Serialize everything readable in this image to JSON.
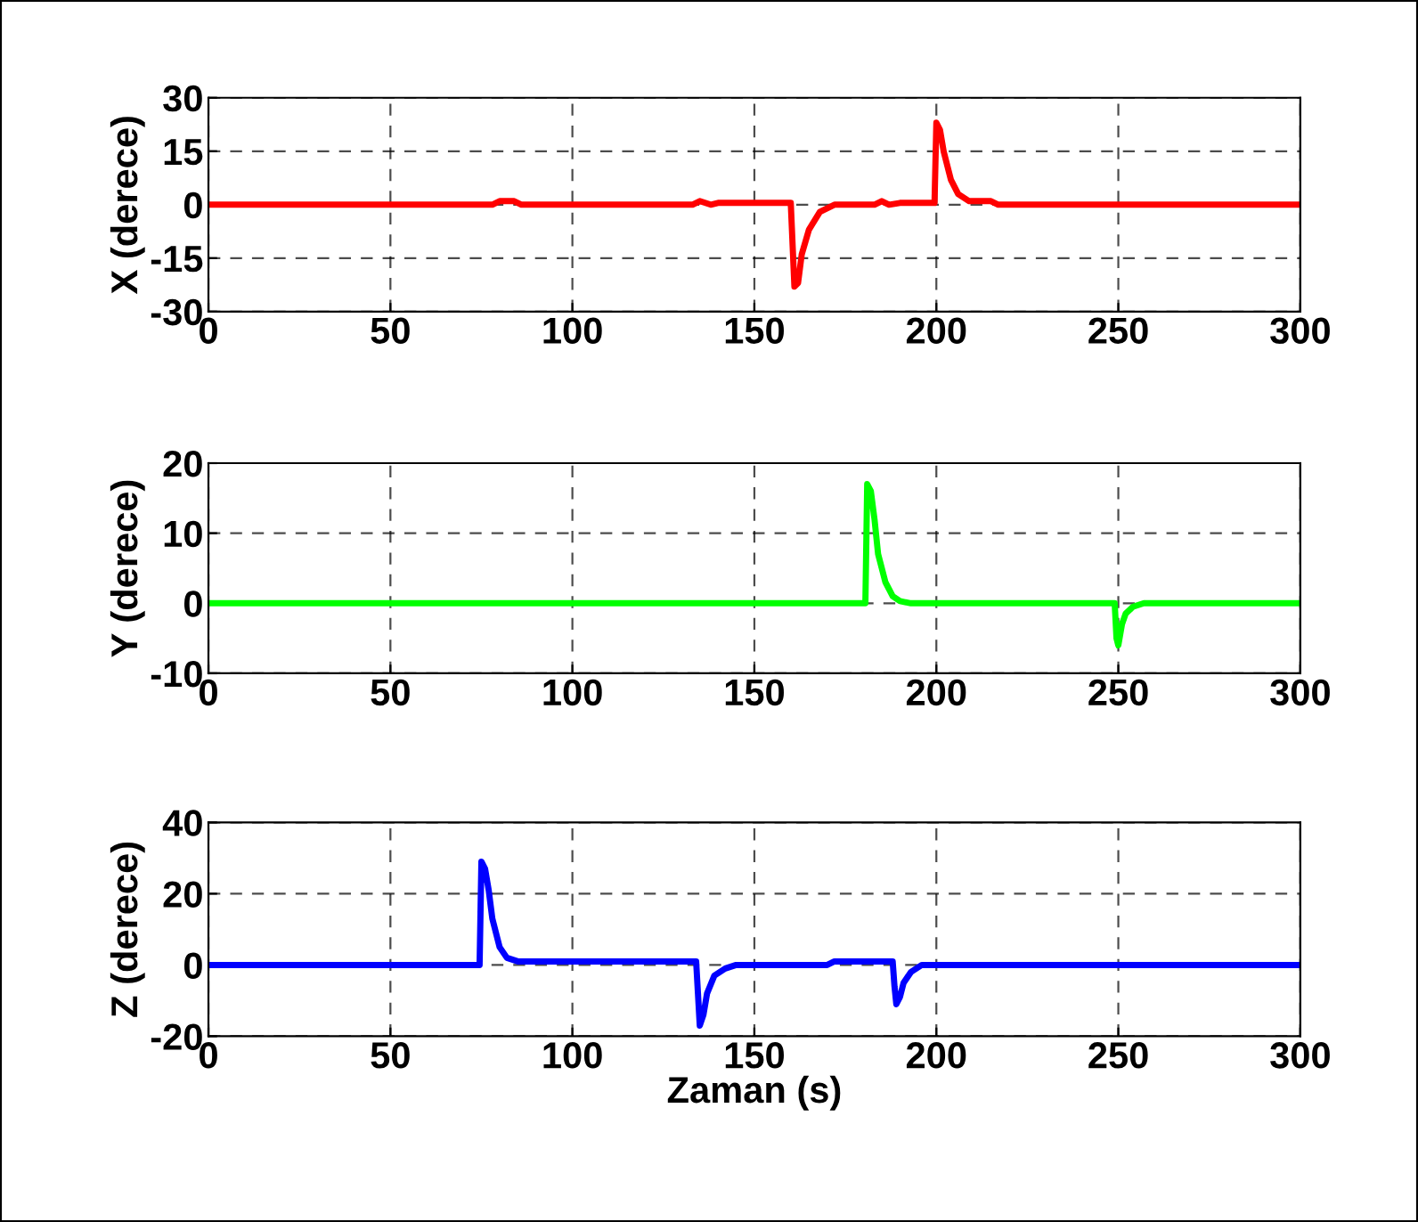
{
  "chart_data": [
    {
      "type": "line",
      "ylabel": "X (derece)",
      "xlim": [
        0,
        300
      ],
      "xticks": [
        0,
        50,
        100,
        150,
        200,
        250,
        300
      ],
      "ylim": [
        -30,
        30
      ],
      "yticks": [
        -30,
        -15,
        0,
        15,
        30
      ],
      "grid": true,
      "series": [
        {
          "color": "#ff0000",
          "x": [
            0,
            78,
            80,
            84,
            86,
            133,
            135,
            138,
            140,
            160,
            161,
            162,
            163,
            165,
            168,
            172,
            183,
            185,
            187,
            190,
            199.5,
            200,
            201,
            202,
            204,
            206,
            209,
            215,
            217,
            220,
            300
          ],
          "values": [
            0,
            0,
            1,
            1,
            0,
            0,
            1,
            0,
            0.5,
            0.5,
            -23,
            -22,
            -14,
            -7,
            -2,
            0,
            0,
            1,
            0,
            0.5,
            0.5,
            23,
            21,
            15,
            7,
            3,
            1,
            1,
            0,
            0,
            0
          ]
        }
      ]
    },
    {
      "type": "line",
      "ylabel": "Y (derece)",
      "xlim": [
        0,
        300
      ],
      "xticks": [
        0,
        50,
        100,
        150,
        200,
        250,
        300
      ],
      "ylim": [
        -10,
        20
      ],
      "yticks": [
        -10,
        0,
        10,
        20
      ],
      "grid": true,
      "series": [
        {
          "color": "#00ff00",
          "x": [
            0,
            180.5,
            181,
            182,
            183,
            184,
            186,
            188,
            190,
            193,
            249,
            249.5,
            250,
            251,
            252,
            254,
            257,
            300
          ],
          "values": [
            0,
            0,
            17,
            16,
            12,
            7,
            3,
            1,
            0.3,
            0,
            0,
            -5,
            -6,
            -3,
            -1.5,
            -0.5,
            0,
            0
          ]
        }
      ]
    },
    {
      "type": "line",
      "ylabel": "Z (derece)",
      "xlabel": "Zaman (s)",
      "xlim": [
        0,
        300
      ],
      "xticks": [
        0,
        50,
        100,
        150,
        200,
        250,
        300
      ],
      "ylim": [
        -20,
        40
      ],
      "yticks": [
        -20,
        0,
        20,
        40
      ],
      "grid": true,
      "series": [
        {
          "color": "#0000ff",
          "x": [
            0,
            74.5,
            75,
            76,
            77,
            78,
            80,
            82,
            85,
            134,
            134.5,
            135,
            136,
            137,
            139,
            142,
            145,
            170,
            172,
            188,
            188.5,
            189,
            190,
            191,
            193,
            196,
            300
          ],
          "values": [
            0,
            0,
            29,
            27,
            21,
            13,
            5,
            2,
            1,
            1,
            -8,
            -17,
            -14,
            -8,
            -3,
            -1,
            0,
            0,
            1,
            1,
            -6,
            -11,
            -9,
            -5,
            -2,
            0,
            0
          ]
        }
      ]
    }
  ]
}
